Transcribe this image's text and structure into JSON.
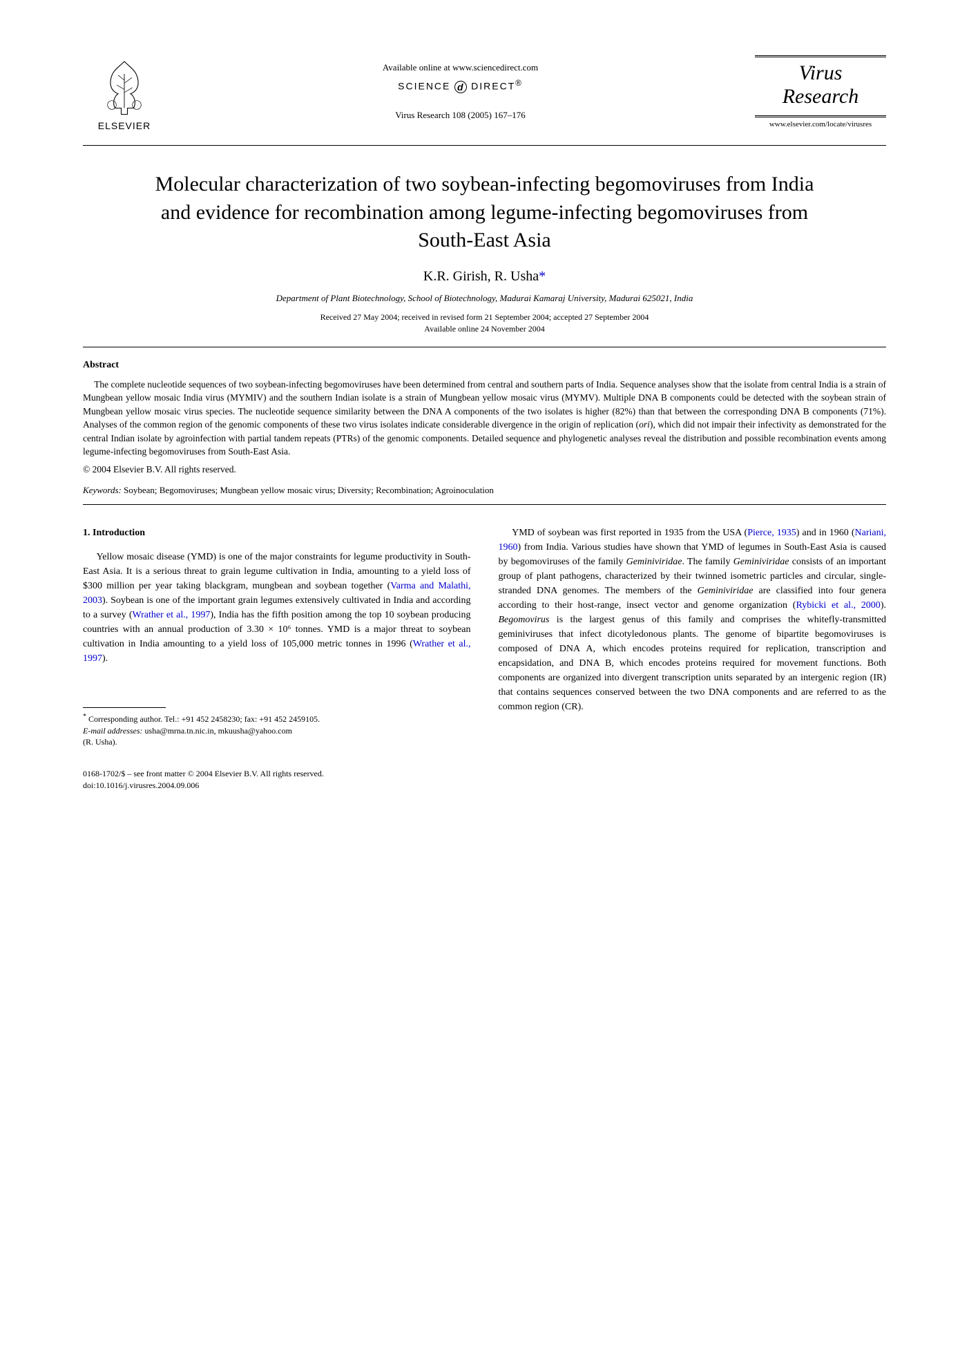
{
  "header": {
    "publisher_label": "ELSEVIER",
    "available_online": "Available online at www.sciencedirect.com",
    "sciencedirect": "SCIENCE DIRECT®",
    "citation": "Virus Research 108 (2005) 167–176",
    "journal_line1": "Virus",
    "journal_line2": "Research",
    "journal_url": "www.elsevier.com/locate/virusres"
  },
  "article": {
    "title": "Molecular characterization of two soybean-infecting begomoviruses from India and evidence for recombination among legume-infecting begomoviruses from South-East Asia",
    "authors": "K.R. Girish, R. Usha",
    "corr_symbol": "*",
    "affiliation": "Department of Plant Biotechnology, School of Biotechnology, Madurai Kamaraj University, Madurai 625021, India",
    "dates": "Received 27 May 2004; received in revised form 21 September 2004; accepted 27 September 2004",
    "available_date": "Available online 24 November 2004"
  },
  "abstract": {
    "heading": "Abstract",
    "text": "The complete nucleotide sequences of two soybean-infecting begomoviruses have been determined from central and southern parts of India. Sequence analyses show that the isolate from central India is a strain of Mungbean yellow mosaic India virus (MYMIV) and the southern Indian isolate is a strain of Mungbean yellow mosaic virus (MYMV). Multiple DNA B components could be detected with the soybean strain of Mungbean yellow mosaic virus species. The nucleotide sequence similarity between the DNA A components of the two isolates is higher (82%) than that between the corresponding DNA B components (71%). Analyses of the common region of the genomic components of these two virus isolates indicate considerable divergence in the origin of replication (ori), which did not impair their infectivity as demonstrated for the central Indian isolate by agroinfection with partial tandem repeats (PTRs) of the genomic components. Detailed sequence and phylogenetic analyses reveal the distribution and possible recombination events among legume-infecting begomoviruses from South-East Asia.",
    "copyright": "© 2004 Elsevier B.V. All rights reserved."
  },
  "keywords": {
    "label": "Keywords:",
    "text": " Soybean; Begomoviruses; Mungbean yellow mosaic virus; Diversity; Recombination; Agroinoculation"
  },
  "body": {
    "section_heading": "1.  Introduction",
    "col1_p1_a": "Yellow mosaic disease (YMD) is one of the major constraints for legume productivity in South-East Asia. It is a serious threat to grain legume cultivation in India, amounting to a yield loss of $300 million per year taking blackgram, mungbean and soybean together (",
    "col1_cite1": "Varma and Malathi, 2003",
    "col1_p1_b": "). Soybean is one of the important grain legumes extensively cultivated in India and according to a survey (",
    "col1_cite2": "Wrather et al., 1997",
    "col1_p1_c": "), India has the fifth position among the top 10 soybean producing countries with an annual production of 3.30 × 10⁶ tonnes. YMD is a major threat to soybean cultivation in India amounting to a yield loss of 105,000 metric tonnes in 1996 (",
    "col1_cite3": "Wrather et al., 1997",
    "col1_p1_d": ").",
    "col2_p1_a": "YMD of soybean was first reported in 1935 from the USA (",
    "col2_cite1": "Pierce, 1935",
    "col2_p1_b": ") and in 1960 (",
    "col2_cite2": "Nariani, 1960",
    "col2_p1_c": ") from India. Various studies have shown that YMD of legumes in South-East Asia is caused by begomoviruses of the family ",
    "col2_ital1": "Geminiviridae",
    "col2_p1_d": ". The family ",
    "col2_ital2": "Geminiviridae",
    "col2_p1_e": " consists of an important group of plant pathogens, characterized by their twinned isometric particles and circular, single-stranded DNA genomes. The members of the ",
    "col2_ital3": "Geminiviridae",
    "col2_p1_f": " are classified into four genera according to their host-range, insect vector and genome organization (",
    "col2_cite3": "Rybicki et al., 2000",
    "col2_p1_g": "). ",
    "col2_ital4": "Begomovirus",
    "col2_p1_h": " is the largest genus of this family and comprises the whitefly-transmitted geminiviruses that infect dicotyledonous plants. The genome of bipartite begomoviruses is composed of DNA A, which encodes proteins required for replication, transcription and encapsidation, and DNA B, which encodes proteins required for movement functions. Both components are organized into divergent transcription units separated by an intergenic region (IR) that contains sequences conserved between the two DNA components and are referred to as the common region (CR)."
  },
  "footnote": {
    "line1": "Corresponding author. Tel.: +91 452 2458230; fax: +91 452 2459105.",
    "email_label": "E-mail addresses:",
    "emails": " usha@mrna.tn.nic.in, mkuusha@yahoo.com",
    "attribution": "(R. Usha)."
  },
  "footer": {
    "front_matter": "0168-1702/$ – see front matter © 2004 Elsevier B.V. All rights reserved.",
    "doi": "doi:10.1016/j.virusres.2004.09.006"
  },
  "colors": {
    "text": "#000000",
    "link": "#0000cc",
    "background": "#ffffff"
  }
}
